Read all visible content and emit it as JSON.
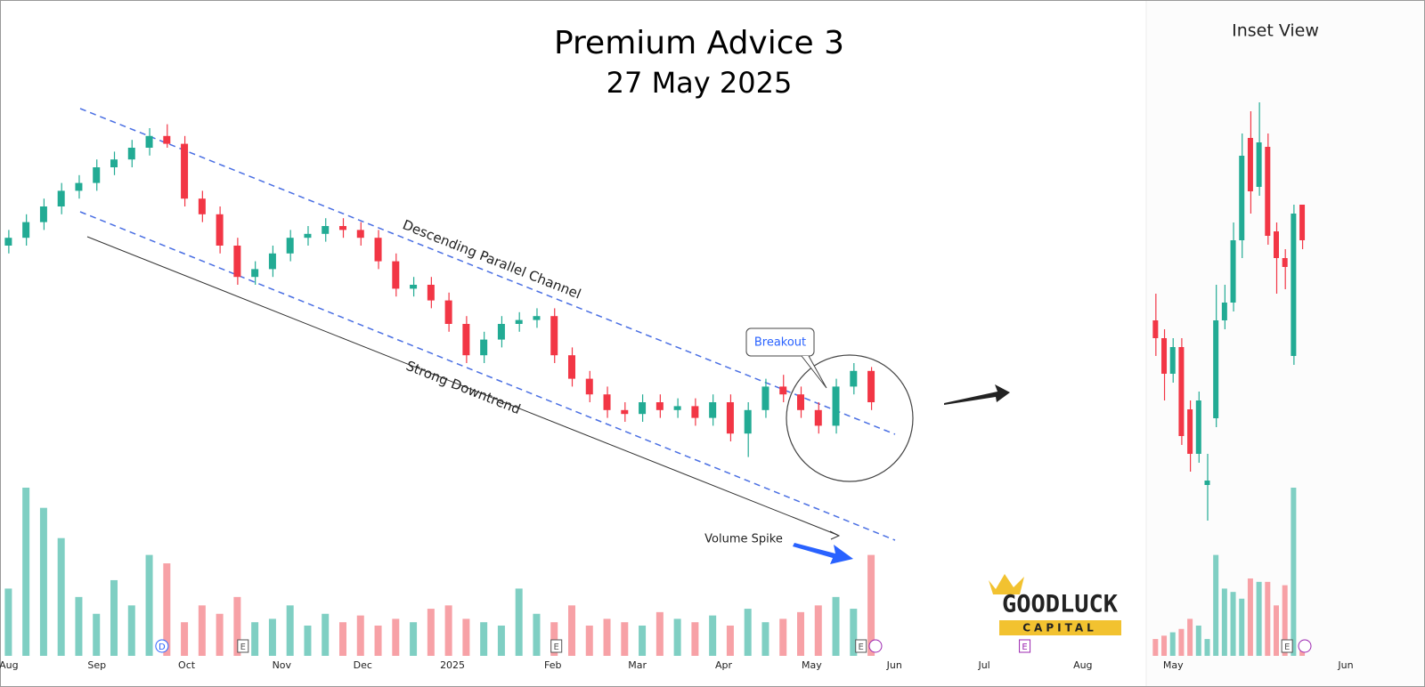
{
  "chart_data": [
    {
      "type": "candlestick",
      "title": "Premium Advice 3",
      "subtitle": "27 May 2025",
      "annotations": {
        "channel": "Descending Parallel Channel",
        "trend": "Strong Downtrend",
        "breakout": "Breakout",
        "volume": "Volume Spike"
      },
      "up_color": "#22ab94",
      "down_color": "#f23645",
      "volume_up_color": "#7fcfc3",
      "volume_down_color": "#f7a1a6",
      "open": [
        60,
        62,
        66,
        70,
        74,
        76,
        80,
        82,
        85,
        88,
        86,
        72,
        68,
        60,
        52,
        54,
        58,
        62,
        63,
        65,
        64,
        62,
        56,
        49,
        50,
        46,
        40,
        32,
        36,
        40,
        41,
        42,
        32,
        26,
        22,
        18,
        17,
        20,
        18,
        19,
        16,
        20,
        12,
        18,
        24,
        22,
        18,
        14,
        24,
        28
      ],
      "high": [
        64,
        68,
        72,
        76,
        78,
        82,
        84,
        87,
        90,
        91,
        88,
        74,
        70,
        62,
        56,
        60,
        64,
        65,
        67,
        67,
        66,
        64,
        58,
        52,
        52,
        48,
        42,
        38,
        42,
        43,
        44,
        44,
        34,
        28,
        24,
        20,
        22,
        22,
        21,
        21,
        22,
        22,
        20,
        26,
        27,
        24,
        20,
        26,
        30,
        29
      ],
      "low": [
        58,
        60,
        64,
        68,
        72,
        74,
        78,
        80,
        83,
        85,
        70,
        66,
        58,
        50,
        50,
        52,
        56,
        60,
        61,
        62,
        60,
        54,
        47,
        47,
        44,
        38,
        30,
        30,
        34,
        38,
        39,
        30,
        24,
        20,
        16,
        15,
        15,
        16,
        16,
        14,
        14,
        10,
        6,
        16,
        20,
        16,
        12,
        12,
        22,
        18
      ],
      "close": [
        62,
        66,
        70,
        74,
        76,
        80,
        82,
        85,
        88,
        86,
        72,
        68,
        60,
        52,
        54,
        58,
        62,
        63,
        65,
        64,
        62,
        56,
        49,
        50,
        46,
        40,
        32,
        36,
        40,
        41,
        42,
        32,
        26,
        22,
        18,
        17,
        20,
        18,
        19,
        16,
        20,
        12,
        18,
        24,
        22,
        18,
        14,
        24,
        28,
        20
      ],
      "volume": [
        40,
        100,
        88,
        70,
        35,
        25,
        45,
        30,
        60,
        55,
        20,
        30,
        25,
        35,
        20,
        22,
        30,
        18,
        25,
        20,
        24,
        18,
        22,
        20,
        28,
        30,
        22,
        20,
        18,
        40,
        25,
        20,
        30,
        18,
        22,
        20,
        18,
        26,
        22,
        20,
        24,
        18,
        28,
        20,
        22,
        26,
        30,
        35,
        28,
        60
      ],
      "xlim": [
        -0.5,
        64.5
      ],
      "ylim": [
        0,
        100
      ],
      "vlim": [
        0,
        100
      ],
      "xticks": [
        {
          "value": 0,
          "label": "Aug"
        },
        {
          "value": 5,
          "label": "Sep"
        },
        {
          "value": 10.1,
          "label": "Oct"
        },
        {
          "value": 15.5,
          "label": "Nov"
        },
        {
          "value": 20.1,
          "label": "Dec"
        },
        {
          "value": 25.2,
          "label": "2025"
        },
        {
          "value": 30.9,
          "label": "Feb"
        },
        {
          "value": 35.7,
          "label": "Mar"
        },
        {
          "value": 40.6,
          "label": "Apr"
        },
        {
          "value": 45.6,
          "label": "May"
        },
        {
          "value": 50.3,
          "label": "Jun"
        },
        {
          "value": 55.4,
          "label": "Jul"
        },
        {
          "value": 61,
          "label": "Aug"
        }
      ],
      "events": [
        {
          "value": 8.7,
          "label": "D"
        },
        {
          "value": 13.3,
          "label": "E"
        },
        {
          "value": 31.1,
          "label": "E"
        },
        {
          "value": 48.4,
          "label": "E"
        },
        {
          "value": 57.7,
          "label": "E"
        }
      ]
    },
    {
      "type": "candlestick",
      "title": "Inset View",
      "up_color": "#22ab94",
      "down_color": "#f23645",
      "volume_up_color": "#7fcfc3",
      "volume_down_color": "#f7a1a6",
      "open": [
        48,
        44,
        36,
        42,
        28,
        18,
        11,
        26,
        48,
        52,
        66,
        89,
        78,
        87,
        68,
        62,
        40,
        74
      ],
      "high": [
        54,
        46,
        44,
        44,
        30,
        32,
        18,
        56,
        56,
        70,
        90,
        95,
        97,
        90,
        70,
        64,
        74,
        74
      ],
      "low": [
        40,
        30,
        34,
        20,
        14,
        16,
        3,
        24,
        46,
        50,
        62,
        72,
        76,
        65,
        54,
        55,
        38,
        64
      ],
      "close": [
        44,
        36,
        42,
        22,
        18,
        30,
        12,
        48,
        52,
        66,
        85,
        77,
        88,
        67,
        62,
        60,
        72,
        66
      ],
      "volume": [
        10,
        12,
        14,
        16,
        22,
        18,
        10,
        60,
        40,
        38,
        34,
        46,
        44,
        44,
        30,
        42,
        100,
        8
      ],
      "xlim": [
        -0.5,
        28.5
      ],
      "ylim": [
        0,
        100
      ],
      "vlim": [
        0,
        100
      ],
      "xticks": [
        {
          "value": 2,
          "label": "May"
        },
        {
          "value": 22,
          "label": "Jun"
        }
      ],
      "events": [
        {
          "value": 15.2,
          "label": "E"
        }
      ]
    }
  ],
  "logo": {
    "name": "GOODLUCK",
    "tagline": "CAPITAL"
  }
}
